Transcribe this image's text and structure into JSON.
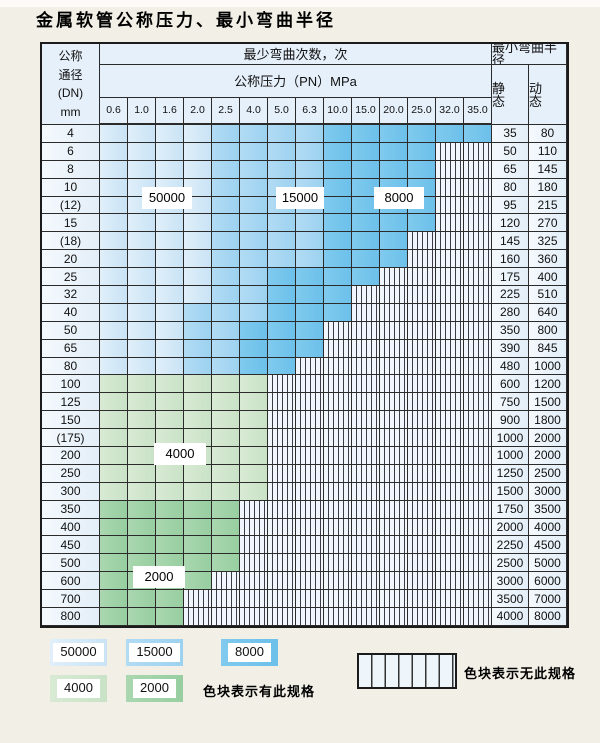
{
  "title": "金属软管公称压力、最小弯曲半径",
  "table": {
    "corner_lines": [
      "公称",
      "通径",
      "(DN)",
      "mm"
    ],
    "bend_cycles_header": "最少弯曲次数，次",
    "pressure_header": "公称压力（PN）MPa",
    "radius_header": "最小弯曲半径",
    "static_label": "静 态",
    "dynamic_label": "动 态",
    "pressures": [
      "0.6",
      "1.0",
      "1.6",
      "2.0",
      "2.5",
      "4.0",
      "5.0",
      "6.3",
      "10.0",
      "15.0",
      "20.0",
      "25.0",
      "32.0",
      "35.0"
    ],
    "cell_legend_note": "b1=50000, b2=15000, b3=8000, g1=4000, g2=2000, x=no-spec",
    "rows": [
      {
        "dn": "4",
        "cells": [
          "b1",
          "b1",
          "b1",
          "b1",
          "b2",
          "b2",
          "b2",
          "b2",
          "b3",
          "b3",
          "b3",
          "b3",
          "b3",
          "b3"
        ],
        "static": "35",
        "dynamic": "80"
      },
      {
        "dn": "6",
        "cells": [
          "b1",
          "b1",
          "b1",
          "b1",
          "b2",
          "b2",
          "b2",
          "b2",
          "b3",
          "b3",
          "b3",
          "b3",
          "x",
          "x"
        ],
        "static": "50",
        "dynamic": "110"
      },
      {
        "dn": "8",
        "cells": [
          "b1",
          "b1",
          "b1",
          "b1",
          "b2",
          "b2",
          "b2",
          "b2",
          "b3",
          "b3",
          "b3",
          "b3",
          "x",
          "x"
        ],
        "static": "65",
        "dynamic": "145"
      },
      {
        "dn": "10",
        "cells": [
          "b1",
          "b1",
          "b1",
          "b1",
          "b2",
          "b2",
          "b2",
          "b2",
          "b3",
          "b3",
          "b3",
          "b3",
          "x",
          "x"
        ],
        "static": "80",
        "dynamic": "180"
      },
      {
        "dn": "(12)",
        "cells": [
          "b1",
          "b1",
          "b1",
          "b1",
          "b2",
          "b2",
          "b2",
          "b2",
          "b3",
          "b3",
          "b3",
          "b3",
          "x",
          "x"
        ],
        "static": "95",
        "dynamic": "215"
      },
      {
        "dn": "15",
        "cells": [
          "b1",
          "b1",
          "b1",
          "b1",
          "b2",
          "b2",
          "b2",
          "b2",
          "b3",
          "b3",
          "b3",
          "b3",
          "x",
          "x"
        ],
        "static": "120",
        "dynamic": "270"
      },
      {
        "dn": "(18)",
        "cells": [
          "b1",
          "b1",
          "b1",
          "b1",
          "b2",
          "b2",
          "b2",
          "b2",
          "b3",
          "b3",
          "b3",
          "x",
          "x",
          "x"
        ],
        "static": "145",
        "dynamic": "325"
      },
      {
        "dn": "20",
        "cells": [
          "b1",
          "b1",
          "b1",
          "b1",
          "b2",
          "b2",
          "b2",
          "b2",
          "b3",
          "b3",
          "b3",
          "x",
          "x",
          "x"
        ],
        "static": "160",
        "dynamic": "360"
      },
      {
        "dn": "25",
        "cells": [
          "b1",
          "b1",
          "b1",
          "b1",
          "b2",
          "b2",
          "b3",
          "b3",
          "b3",
          "b3",
          "x",
          "x",
          "x",
          "x"
        ],
        "static": "175",
        "dynamic": "400"
      },
      {
        "dn": "32",
        "cells": [
          "b1",
          "b1",
          "b1",
          "b1",
          "b2",
          "b2",
          "b3",
          "b3",
          "b3",
          "x",
          "x",
          "x",
          "x",
          "x"
        ],
        "static": "225",
        "dynamic": "510"
      },
      {
        "dn": "40",
        "cells": [
          "b1",
          "b1",
          "b1",
          "b2",
          "b2",
          "b2",
          "b3",
          "b3",
          "b3",
          "x",
          "x",
          "x",
          "x",
          "x"
        ],
        "static": "280",
        "dynamic": "640"
      },
      {
        "dn": "50",
        "cells": [
          "b1",
          "b1",
          "b1",
          "b2",
          "b2",
          "b3",
          "b3",
          "b3",
          "x",
          "x",
          "x",
          "x",
          "x",
          "x"
        ],
        "static": "350",
        "dynamic": "800"
      },
      {
        "dn": "65",
        "cells": [
          "b1",
          "b1",
          "b1",
          "b2",
          "b2",
          "b3",
          "b3",
          "b3",
          "x",
          "x",
          "x",
          "x",
          "x",
          "x"
        ],
        "static": "390",
        "dynamic": "845"
      },
      {
        "dn": "80",
        "cells": [
          "b1",
          "b1",
          "b1",
          "b2",
          "b2",
          "b3",
          "b3",
          "x",
          "x",
          "x",
          "x",
          "x",
          "x",
          "x"
        ],
        "static": "480",
        "dynamic": "1000"
      },
      {
        "dn": "100",
        "cells": [
          "g1",
          "g1",
          "g1",
          "g1",
          "g1",
          "g1",
          "x",
          "x",
          "x",
          "x",
          "x",
          "x",
          "x",
          "x"
        ],
        "static": "600",
        "dynamic": "1200"
      },
      {
        "dn": "125",
        "cells": [
          "g1",
          "g1",
          "g1",
          "g1",
          "g1",
          "g1",
          "x",
          "x",
          "x",
          "x",
          "x",
          "x",
          "x",
          "x"
        ],
        "static": "750",
        "dynamic": "1500"
      },
      {
        "dn": "150",
        "cells": [
          "g1",
          "g1",
          "g1",
          "g1",
          "g1",
          "g1",
          "x",
          "x",
          "x",
          "x",
          "x",
          "x",
          "x",
          "x"
        ],
        "static": "900",
        "dynamic": "1800"
      },
      {
        "dn": "(175)",
        "cells": [
          "g1",
          "g1",
          "g1",
          "g1",
          "g1",
          "g1",
          "x",
          "x",
          "x",
          "x",
          "x",
          "x",
          "x",
          "x"
        ],
        "static": "1000",
        "dynamic": "2000"
      },
      {
        "dn": "200",
        "cells": [
          "g1",
          "g1",
          "g1",
          "g1",
          "g1",
          "g1",
          "x",
          "x",
          "x",
          "x",
          "x",
          "x",
          "x",
          "x"
        ],
        "static": "1000",
        "dynamic": "2000"
      },
      {
        "dn": "250",
        "cells": [
          "g1",
          "g1",
          "g1",
          "g1",
          "g1",
          "g1",
          "x",
          "x",
          "x",
          "x",
          "x",
          "x",
          "x",
          "x"
        ],
        "static": "1250",
        "dynamic": "2500"
      },
      {
        "dn": "300",
        "cells": [
          "g1",
          "g1",
          "g1",
          "g1",
          "g1",
          "g1",
          "x",
          "x",
          "x",
          "x",
          "x",
          "x",
          "x",
          "x"
        ],
        "static": "1500",
        "dynamic": "3000"
      },
      {
        "dn": "350",
        "cells": [
          "g2",
          "g2",
          "g2",
          "g2",
          "g2",
          "x",
          "x",
          "x",
          "x",
          "x",
          "x",
          "x",
          "x",
          "x"
        ],
        "static": "1750",
        "dynamic": "3500"
      },
      {
        "dn": "400",
        "cells": [
          "g2",
          "g2",
          "g2",
          "g2",
          "g2",
          "x",
          "x",
          "x",
          "x",
          "x",
          "x",
          "x",
          "x",
          "x"
        ],
        "static": "2000",
        "dynamic": "4000"
      },
      {
        "dn": "450",
        "cells": [
          "g2",
          "g2",
          "g2",
          "g2",
          "g2",
          "x",
          "x",
          "x",
          "x",
          "x",
          "x",
          "x",
          "x",
          "x"
        ],
        "static": "2250",
        "dynamic": "4500"
      },
      {
        "dn": "500",
        "cells": [
          "g2",
          "g2",
          "g2",
          "g2",
          "g2",
          "x",
          "x",
          "x",
          "x",
          "x",
          "x",
          "x",
          "x",
          "x"
        ],
        "static": "2500",
        "dynamic": "5000"
      },
      {
        "dn": "600",
        "cells": [
          "g2",
          "g2",
          "g2",
          "g2",
          "x",
          "x",
          "x",
          "x",
          "x",
          "x",
          "x",
          "x",
          "x",
          "x"
        ],
        "static": "3000",
        "dynamic": "6000"
      },
      {
        "dn": "700",
        "cells": [
          "g2",
          "g2",
          "g2",
          "x",
          "x",
          "x",
          "x",
          "x",
          "x",
          "x",
          "x",
          "x",
          "x",
          "x"
        ],
        "static": "3500",
        "dynamic": "7000"
      },
      {
        "dn": "800",
        "cells": [
          "g2",
          "g2",
          "g2",
          "x",
          "x",
          "x",
          "x",
          "x",
          "x",
          "x",
          "x",
          "x",
          "x",
          "x"
        ],
        "static": "4000",
        "dynamic": "8000"
      }
    ]
  },
  "overlays": [
    {
      "label": "50000"
    },
    {
      "label": "15000"
    },
    {
      "label": "8000"
    },
    {
      "label": "4000"
    },
    {
      "label": "2000"
    }
  ],
  "legend": {
    "items": [
      {
        "label": "50000",
        "key": "b1"
      },
      {
        "label": "15000",
        "key": "b2"
      },
      {
        "label": "8000",
        "key": "b3"
      },
      {
        "label": "4000",
        "key": "g1"
      },
      {
        "label": "2000",
        "key": "g2"
      }
    ],
    "has_spec_text": "色块表示有此规格",
    "no_spec_text": "色块表示无此规格"
  },
  "colors": {
    "cycles_50000": "#d5eaf8",
    "cycles_15000": "#a8d8f2",
    "cycles_8000": "#76c5ec",
    "cycles_4000": "#d1e6cd",
    "cycles_2000": "#a0d2a8",
    "header_bg": "#e6f0fa",
    "page_bg": "#f2f0e6"
  }
}
